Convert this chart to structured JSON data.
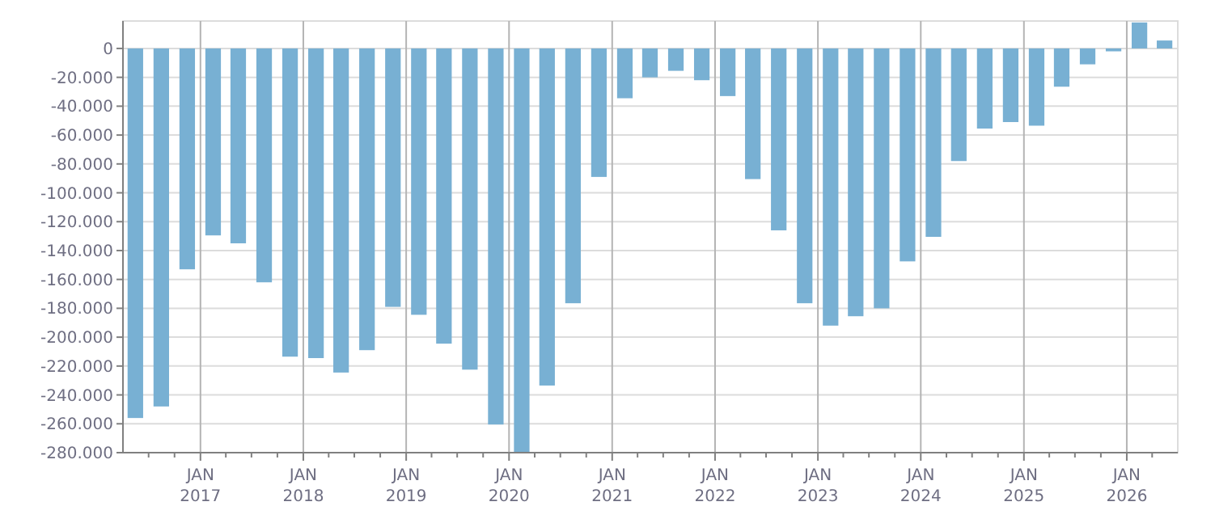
{
  "chart_data": {
    "type": "bar",
    "color": "#78b0d3",
    "x": [
      "2016-05-15",
      "2016-08-15",
      "2016-11-15",
      "2017-02-15",
      "2017-05-15",
      "2017-08-15",
      "2017-11-15",
      "2018-02-15",
      "2018-05-15",
      "2018-08-15",
      "2018-11-15",
      "2019-02-15",
      "2019-05-15",
      "2019-08-15",
      "2019-11-15",
      "2020-02-15",
      "2020-05-15",
      "2020-08-15",
      "2020-11-15",
      "2021-02-15",
      "2021-05-15",
      "2021-08-15",
      "2021-11-15",
      "2022-02-15",
      "2022-05-15",
      "2022-08-15",
      "2022-11-15",
      "2023-02-15",
      "2023-05-15",
      "2023-08-15",
      "2023-11-15",
      "2024-02-15",
      "2024-05-15",
      "2024-08-15",
      "2024-11-15",
      "2025-02-15",
      "2025-05-15",
      "2025-08-15",
      "2025-11-15",
      "2026-02-15",
      "2026-05-15"
    ],
    "values": [
      -256000,
      -248000,
      -153000,
      -129500,
      -135000,
      -162000,
      -213500,
      -214500,
      -224500,
      -209000,
      -179000,
      -184500,
      -204500,
      -222500,
      -260500,
      -280000,
      -233500,
      -176500,
      -89000,
      -34500,
      -20000,
      -15500,
      -22000,
      -33000,
      -90500,
      -126000,
      -176500,
      -192000,
      -185500,
      -180000,
      -147500,
      -130500,
      -78000,
      -55500,
      -51000,
      -53500,
      -26500,
      -11000,
      -2000,
      18000,
      5500
    ],
    "xlim": [
      "2016-04-01",
      "2026-07-01"
    ],
    "xticks": [
      {
        "value": "2016-07-01",
        "label": null
      },
      {
        "value": "2016-10-01",
        "label": null
      },
      {
        "value": "2017-01-01",
        "label": "JAN 2017"
      },
      {
        "value": "2017-04-01",
        "label": null
      },
      {
        "value": "2017-07-01",
        "label": null
      },
      {
        "value": "2017-10-01",
        "label": null
      },
      {
        "value": "2018-01-01",
        "label": "JAN 2018"
      },
      {
        "value": "2018-04-01",
        "label": null
      },
      {
        "value": "2018-07-01",
        "label": null
      },
      {
        "value": "2018-10-01",
        "label": null
      },
      {
        "value": "2019-01-01",
        "label": "JAN 2019"
      },
      {
        "value": "2019-04-01",
        "label": null
      },
      {
        "value": "2019-07-01",
        "label": null
      },
      {
        "value": "2019-10-01",
        "label": null
      },
      {
        "value": "2020-01-01",
        "label": "JAN 2020"
      },
      {
        "value": "2020-04-01",
        "label": null
      },
      {
        "value": "2020-07-01",
        "label": null
      },
      {
        "value": "2020-10-01",
        "label": null
      },
      {
        "value": "2021-01-01",
        "label": "JAN 2021"
      },
      {
        "value": "2021-04-01",
        "label": null
      },
      {
        "value": "2021-07-01",
        "label": null
      },
      {
        "value": "2021-10-01",
        "label": null
      },
      {
        "value": "2022-01-01",
        "label": "JAN 2022"
      },
      {
        "value": "2022-04-01",
        "label": null
      },
      {
        "value": "2022-07-01",
        "label": null
      },
      {
        "value": "2022-10-01",
        "label": null
      },
      {
        "value": "2023-01-01",
        "label": "JAN 2023"
      },
      {
        "value": "2023-04-01",
        "label": null
      },
      {
        "value": "2023-07-01",
        "label": null
      },
      {
        "value": "2023-10-01",
        "label": null
      },
      {
        "value": "2024-01-01",
        "label": "JAN 2024"
      },
      {
        "value": "2024-04-01",
        "label": null
      },
      {
        "value": "2024-07-01",
        "label": null
      },
      {
        "value": "2024-10-01",
        "label": null
      },
      {
        "value": "2025-01-01",
        "label": "JAN 2025"
      },
      {
        "value": "2025-04-01",
        "label": null
      },
      {
        "value": "2025-07-01",
        "label": null
      },
      {
        "value": "2025-10-01",
        "label": null
      },
      {
        "value": "2026-01-01",
        "label": "JAN 2026"
      },
      {
        "value": "2026-04-01",
        "label": null
      }
    ],
    "ylim": [
      -280000,
      19000
    ],
    "yticks": [
      {
        "value": 0,
        "label": "0"
      },
      {
        "value": -20000,
        "label": "-20.000"
      },
      {
        "value": -40000,
        "label": "-40.000"
      },
      {
        "value": -60000,
        "label": "-60.000"
      },
      {
        "value": -80000,
        "label": "-80.000"
      },
      {
        "value": -100000,
        "label": "-100.000"
      },
      {
        "value": -120000,
        "label": "-120.000"
      },
      {
        "value": -140000,
        "label": "-140.000"
      },
      {
        "value": -160000,
        "label": "-160.000"
      },
      {
        "value": -180000,
        "label": "-180.000"
      },
      {
        "value": -200000,
        "label": "-200.000"
      },
      {
        "value": -220000,
        "label": "-220.000"
      },
      {
        "value": -240000,
        "label": "-240.000"
      },
      {
        "value": -260000,
        "label": "-260.000"
      },
      {
        "value": -280000,
        "label": "-280.000"
      }
    ],
    "grid": true
  }
}
